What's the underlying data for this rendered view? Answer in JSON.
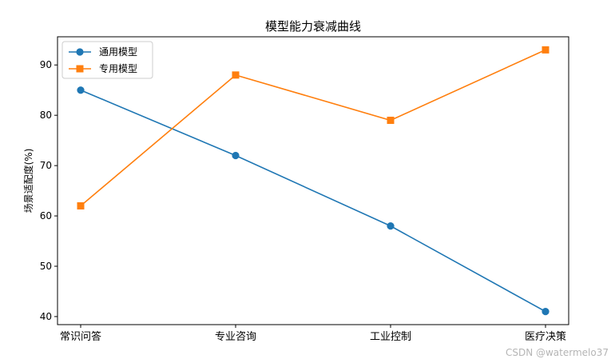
{
  "chart_data": {
    "type": "line",
    "title": "模型能力衰减曲线",
    "xlabel": "",
    "ylabel": "场景适配度(%)",
    "categories": [
      "常识问答",
      "专业咨询",
      "工业控制",
      "医疗决策"
    ],
    "series": [
      {
        "name": "通用模型",
        "values": [
          85,
          72,
          58,
          41
        ],
        "color": "#1f77b4",
        "marker": "circle"
      },
      {
        "name": "专用模型",
        "values": [
          62,
          88,
          79,
          93
        ],
        "color": "#ff7f0e",
        "marker": "square"
      }
    ],
    "ylim": [
      38.4,
      95.6
    ],
    "yticks": [
      40,
      50,
      60,
      70,
      80,
      90
    ],
    "grid": false,
    "legend": "top-left"
  },
  "watermark": "CSDN @watermelo37"
}
